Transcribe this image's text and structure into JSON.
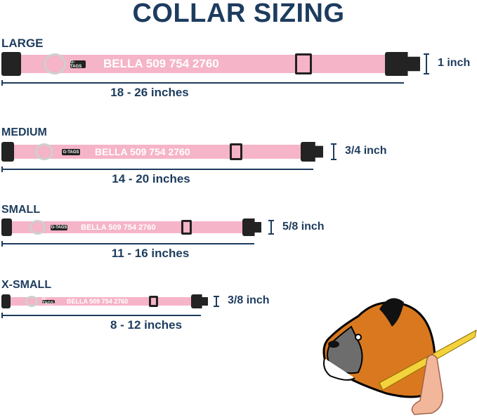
{
  "title": "COLLAR SIZING",
  "colors": {
    "navy": "#1d3c5e",
    "strap_pink": "#f5b4c8",
    "buckle": "#232323"
  },
  "collars": [
    {
      "size": "LARGE",
      "tag": "G-TAGS",
      "engraving": "BELLA 509 754 2760",
      "length": "18 - 26 inches",
      "width": "1 inch"
    },
    {
      "size": "MEDIUM",
      "tag": "G-TAGS",
      "engraving": "BELLA 509 754 2760",
      "length": "14 - 20 inches",
      "width": "3/4 inch"
    },
    {
      "size": "SMALL",
      "tag": "G-TAGS",
      "engraving": "BELLA 509 754 2760",
      "length": "11 - 16 inches",
      "width": "5/8 inch"
    },
    {
      "size": "X-SMALL",
      "tag": "G-TAGS",
      "engraving": "BELLA 509 754 2760",
      "length": "8 - 12 inches",
      "width": "3/8 inch"
    }
  ],
  "illustration": {
    "icon": "boxer-dog-measuring-tape-icon"
  }
}
